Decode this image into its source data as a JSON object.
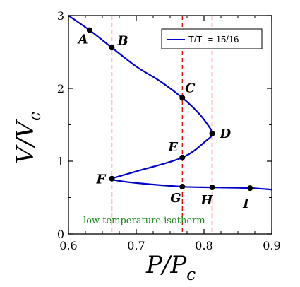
{
  "chart_data": {
    "type": "line",
    "xlabel_main": "P/P",
    "xlabel_sub": "c",
    "ylabel_main": "V/V",
    "ylabel_sub": "c",
    "xlim": [
      0.6,
      0.9
    ],
    "ylim": [
      0,
      3
    ],
    "x_ticks": [
      0.6,
      0.7,
      0.8,
      0.9
    ],
    "x_tick_labels": [
      "0.6",
      "0.7",
      "0.8",
      "0.9"
    ],
    "y_ticks": [
      0,
      1,
      2,
      3
    ],
    "y_tick_labels": [
      "0",
      "1",
      "2",
      "3"
    ],
    "grid": false,
    "legend_position": "top-right",
    "series": [
      {
        "name_main": "T/T",
        "name_sub": "c",
        "name_suffix": " = 15/16",
        "color": "#0000cc",
        "x": [
          0.6,
          0.631,
          0.664,
          0.7,
          0.735,
          0.768,
          0.79,
          0.804,
          0.812,
          0.803,
          0.768,
          0.7,
          0.664,
          0.668,
          0.7,
          0.768,
          0.812,
          0.868,
          0.9
        ],
        "y": [
          3.0,
          2.8,
          2.56,
          2.3,
          2.1,
          1.87,
          1.68,
          1.52,
          1.38,
          1.28,
          1.05,
          0.86,
          0.76,
          0.74,
          0.7,
          0.65,
          0.64,
          0.63,
          0.61
        ]
      }
    ],
    "points": [
      {
        "label": "A",
        "x": 0.631,
        "y": 2.8
      },
      {
        "label": "B",
        "x": 0.664,
        "y": 2.56
      },
      {
        "label": "C",
        "x": 0.768,
        "y": 1.87
      },
      {
        "label": "D",
        "x": 0.812,
        "y": 1.38
      },
      {
        "label": "E",
        "x": 0.768,
        "y": 1.05
      },
      {
        "label": "F",
        "x": 0.664,
        "y": 0.76
      },
      {
        "label": "G",
        "x": 0.768,
        "y": 0.65
      },
      {
        "label": "H",
        "x": 0.812,
        "y": 0.64
      },
      {
        "label": "I",
        "x": 0.868,
        "y": 0.63
      }
    ],
    "vertical_lines": {
      "x": [
        0.664,
        0.768,
        0.812
      ],
      "color": "#e00000",
      "style": "dashed"
    },
    "annotation": "low temperature isotherm",
    "annotation_color": "#1a8a1a"
  }
}
